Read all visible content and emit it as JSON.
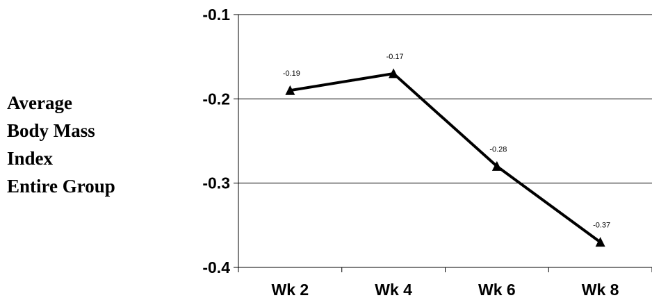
{
  "chart_data": {
    "type": "line",
    "title": "",
    "ylabel_lines": [
      "Average",
      "Body Mass",
      "Index",
      "Entire Group"
    ],
    "xlabel": "",
    "categories": [
      "Wk 2",
      "Wk 4",
      "Wk 6",
      "Wk 8"
    ],
    "series": [
      {
        "values": [
          -0.19,
          -0.17,
          -0.28,
          -0.37
        ],
        "labels": [
          "-0.19",
          "-0.17",
          "-0.28",
          "-0.37"
        ]
      }
    ],
    "ylim": [
      -0.4,
      -0.1
    ],
    "yticks": [
      -0.1,
      -0.2,
      -0.3,
      -0.4
    ],
    "ytick_labels": [
      "-0.1",
      "-0.2",
      "-0.3",
      "-0.4"
    ],
    "grid": true,
    "marker": "triangle",
    "line_color": "#000000"
  }
}
